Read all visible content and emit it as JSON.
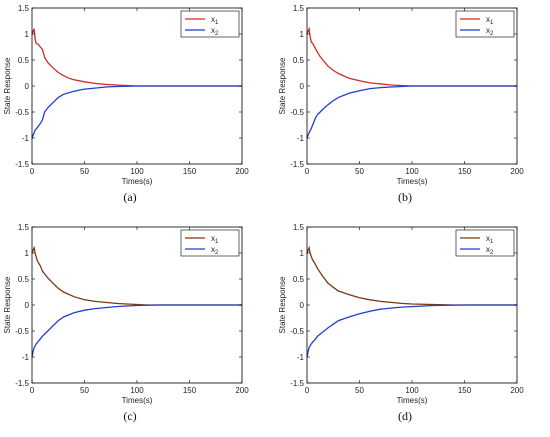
{
  "chart_data": [
    {
      "type": "line",
      "caption": "(a)",
      "xlabel": "Times(s)",
      "ylabel": "State Response",
      "xlim": [
        0,
        200
      ],
      "ylim": [
        -1.5,
        1.5
      ],
      "xticks": [
        "0",
        "50",
        "100",
        "150",
        "200"
      ],
      "yticks": [
        "-1.5",
        "-1",
        "-0.5",
        "0",
        "0.5",
        "1",
        "1.5"
      ],
      "legend": "top-right",
      "series": [
        {
          "name": "x1",
          "color": "#d62728",
          "points": [
            [
              0,
              1.0
            ],
            [
              1,
              1.05
            ],
            [
              2,
              1.1
            ],
            [
              3,
              0.9
            ],
            [
              4,
              0.82
            ],
            [
              6,
              0.8
            ],
            [
              8,
              0.75
            ],
            [
              10,
              0.7
            ],
            [
              12,
              0.55
            ],
            [
              15,
              0.45
            ],
            [
              20,
              0.35
            ],
            [
              25,
              0.26
            ],
            [
              30,
              0.2
            ],
            [
              35,
              0.15
            ],
            [
              40,
              0.12
            ],
            [
              50,
              0.08
            ],
            [
              60,
              0.05
            ],
            [
              70,
              0.03
            ],
            [
              80,
              0.02
            ],
            [
              90,
              0.01
            ],
            [
              100,
              0.0
            ],
            [
              120,
              0.0
            ],
            [
              150,
              0.0
            ],
            [
              200,
              0.0
            ]
          ]
        },
        {
          "name": "x2",
          "color": "#1f3fcc",
          "points": [
            [
              0,
              -1.0
            ],
            [
              1,
              -0.95
            ],
            [
              2,
              -0.9
            ],
            [
              3,
              -0.85
            ],
            [
              5,
              -0.8
            ],
            [
              8,
              -0.72
            ],
            [
              10,
              -0.65
            ],
            [
              12,
              -0.5
            ],
            [
              15,
              -0.42
            ],
            [
              20,
              -0.32
            ],
            [
              25,
              -0.22
            ],
            [
              30,
              -0.16
            ],
            [
              40,
              -0.1
            ],
            [
              50,
              -0.06
            ],
            [
              60,
              -0.04
            ],
            [
              70,
              -0.02
            ],
            [
              80,
              -0.01
            ],
            [
              100,
              0.0
            ],
            [
              150,
              0.0
            ],
            [
              200,
              0.0
            ]
          ]
        }
      ]
    },
    {
      "type": "line",
      "caption": "(b)",
      "xlabel": "Times(s)",
      "ylabel": "State Response",
      "xlim": [
        0,
        200
      ],
      "ylim": [
        -1.5,
        1.5
      ],
      "xticks": [
        "0",
        "50",
        "100",
        "150",
        "200"
      ],
      "yticks": [
        "-1.5",
        "-1",
        "-0.5",
        "0",
        "0.5",
        "1",
        "1.5"
      ],
      "legend": "top-right",
      "series": [
        {
          "name": "x1",
          "color": "#d62728",
          "points": [
            [
              0,
              1.0
            ],
            [
              1,
              1.05
            ],
            [
              2,
              1.1
            ],
            [
              3,
              0.95
            ],
            [
              4,
              0.85
            ],
            [
              6,
              0.8
            ],
            [
              8,
              0.72
            ],
            [
              10,
              0.65
            ],
            [
              12,
              0.58
            ],
            [
              15,
              0.5
            ],
            [
              20,
              0.38
            ],
            [
              25,
              0.3
            ],
            [
              30,
              0.24
            ],
            [
              40,
              0.15
            ],
            [
              50,
              0.1
            ],
            [
              60,
              0.06
            ],
            [
              70,
              0.04
            ],
            [
              80,
              0.02
            ],
            [
              90,
              0.01
            ],
            [
              100,
              0.0
            ],
            [
              150,
              0.0
            ],
            [
              200,
              0.0
            ]
          ]
        },
        {
          "name": "x2",
          "color": "#1f3fcc",
          "points": [
            [
              0,
              -1.0
            ],
            [
              1,
              -0.95
            ],
            [
              2,
              -0.9
            ],
            [
              4,
              -0.82
            ],
            [
              6,
              -0.72
            ],
            [
              8,
              -0.62
            ],
            [
              10,
              -0.55
            ],
            [
              15,
              -0.45
            ],
            [
              20,
              -0.36
            ],
            [
              25,
              -0.28
            ],
            [
              30,
              -0.22
            ],
            [
              40,
              -0.14
            ],
            [
              50,
              -0.09
            ],
            [
              60,
              -0.05
            ],
            [
              70,
              -0.03
            ],
            [
              80,
              -0.02
            ],
            [
              90,
              -0.01
            ],
            [
              100,
              0.0
            ],
            [
              150,
              0.0
            ],
            [
              200,
              0.0
            ]
          ]
        }
      ]
    },
    {
      "type": "line",
      "caption": "(c)",
      "xlabel": "Times(s)",
      "ylabel": "State Response",
      "xlim": [
        0,
        200
      ],
      "ylim": [
        -1.5,
        1.5
      ],
      "xticks": [
        "0",
        "50",
        "100",
        "150",
        "200"
      ],
      "yticks": [
        "-1.5",
        "-1",
        "-0.5",
        "0",
        "0.5",
        "1",
        "1.5"
      ],
      "legend": "top-right",
      "series": [
        {
          "name": "x1",
          "color": "#7a3a12",
          "points": [
            [
              0,
              1.0
            ],
            [
              1,
              1.05
            ],
            [
              2,
              1.1
            ],
            [
              3,
              1.0
            ],
            [
              5,
              0.85
            ],
            [
              8,
              0.75
            ],
            [
              10,
              0.65
            ],
            [
              15,
              0.52
            ],
            [
              20,
              0.42
            ],
            [
              25,
              0.32
            ],
            [
              30,
              0.25
            ],
            [
              40,
              0.16
            ],
            [
              50,
              0.1
            ],
            [
              60,
              0.07
            ],
            [
              70,
              0.05
            ],
            [
              80,
              0.03
            ],
            [
              90,
              0.02
            ],
            [
              100,
              0.01
            ],
            [
              110,
              0.0
            ],
            [
              150,
              0.0
            ],
            [
              200,
              0.0
            ]
          ]
        },
        {
          "name": "x2",
          "color": "#1f3fcc",
          "points": [
            [
              0,
              -1.0
            ],
            [
              1,
              -0.9
            ],
            [
              2,
              -0.82
            ],
            [
              4,
              -0.75
            ],
            [
              6,
              -0.7
            ],
            [
              8,
              -0.65
            ],
            [
              10,
              -0.6
            ],
            [
              15,
              -0.5
            ],
            [
              20,
              -0.4
            ],
            [
              25,
              -0.3
            ],
            [
              30,
              -0.23
            ],
            [
              40,
              -0.15
            ],
            [
              50,
              -0.1
            ],
            [
              60,
              -0.07
            ],
            [
              70,
              -0.05
            ],
            [
              80,
              -0.03
            ],
            [
              90,
              -0.02
            ],
            [
              100,
              -0.01
            ],
            [
              120,
              0.0
            ],
            [
              150,
              0.0
            ],
            [
              200,
              0.0
            ]
          ]
        }
      ]
    },
    {
      "type": "line",
      "caption": "(d)",
      "xlabel": "Times(s)",
      "ylabel": "State Response",
      "xlim": [
        0,
        200
      ],
      "ylim": [
        -1.5,
        1.5
      ],
      "xticks": [
        "0",
        "50",
        "100",
        "150",
        "200"
      ],
      "yticks": [
        "-1.5",
        "-1",
        "-0.5",
        "0",
        "0.5",
        "1",
        "1.5"
      ],
      "legend": "top-right",
      "series": [
        {
          "name": "x1",
          "color": "#7a3a12",
          "points": [
            [
              0,
              1.0
            ],
            [
              1,
              1.05
            ],
            [
              2,
              1.1
            ],
            [
              3,
              1.0
            ],
            [
              5,
              0.88
            ],
            [
              8,
              0.78
            ],
            [
              10,
              0.7
            ],
            [
              15,
              0.55
            ],
            [
              20,
              0.42
            ],
            [
              25,
              0.34
            ],
            [
              30,
              0.27
            ],
            [
              40,
              0.2
            ],
            [
              50,
              0.14
            ],
            [
              60,
              0.1
            ],
            [
              70,
              0.07
            ],
            [
              80,
              0.05
            ],
            [
              90,
              0.03
            ],
            [
              100,
              0.02
            ],
            [
              120,
              0.01
            ],
            [
              140,
              0.0
            ],
            [
              200,
              0.0
            ]
          ]
        },
        {
          "name": "x2",
          "color": "#1f3fcc",
          "points": [
            [
              0,
              -1.0
            ],
            [
              1,
              -0.9
            ],
            [
              2,
              -0.82
            ],
            [
              4,
              -0.75
            ],
            [
              6,
              -0.7
            ],
            [
              8,
              -0.66
            ],
            [
              10,
              -0.6
            ],
            [
              15,
              -0.52
            ],
            [
              20,
              -0.44
            ],
            [
              25,
              -0.37
            ],
            [
              30,
              -0.3
            ],
            [
              40,
              -0.23
            ],
            [
              50,
              -0.17
            ],
            [
              60,
              -0.12
            ],
            [
              70,
              -0.08
            ],
            [
              80,
              -0.06
            ],
            [
              90,
              -0.04
            ],
            [
              100,
              -0.03
            ],
            [
              120,
              -0.01
            ],
            [
              150,
              0.0
            ],
            [
              200,
              0.0
            ]
          ]
        }
      ]
    }
  ]
}
